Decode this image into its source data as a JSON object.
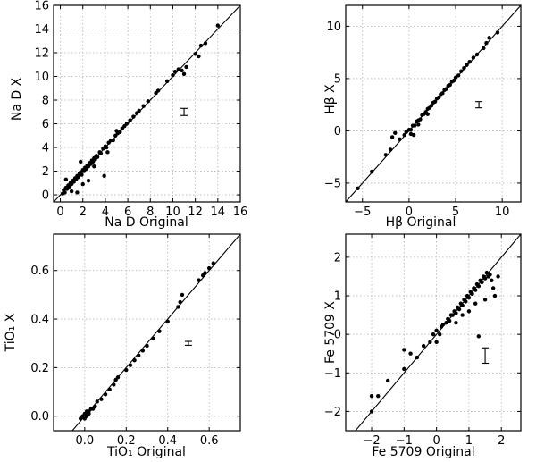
{
  "chart_data": [
    {
      "type": "scatter",
      "xlabel": "Na D Original",
      "ylabel": "Na D X",
      "xlim": [
        -0.6,
        16
      ],
      "ylim": [
        -0.6,
        16
      ],
      "xticks": [
        "0",
        "2",
        "4",
        "6",
        "8",
        "10",
        "12",
        "14",
        "16"
      ],
      "yticks": [
        "0",
        "2",
        "4",
        "6",
        "8",
        "10",
        "12",
        "14",
        "16"
      ],
      "xtick_values": [
        0,
        2,
        4,
        6,
        8,
        10,
        12,
        14,
        16
      ],
      "ytick_values": [
        0,
        2,
        4,
        6,
        8,
        10,
        12,
        14,
        16
      ],
      "grid": true,
      "identity_line": true,
      "error_bar": {
        "x": 11.0,
        "y": 7.0,
        "half_height": 0.3
      },
      "points": [
        [
          0.2,
          0.1
        ],
        [
          0.3,
          0.4
        ],
        [
          0.4,
          0.2
        ],
        [
          0.5,
          0.6
        ],
        [
          0.6,
          0.5
        ],
        [
          0.7,
          0.8
        ],
        [
          0.8,
          0.7
        ],
        [
          0.9,
          1.0
        ],
        [
          1.0,
          0.9
        ],
        [
          1.1,
          1.2
        ],
        [
          1.2,
          1.1
        ],
        [
          1.3,
          1.4
        ],
        [
          1.4,
          1.3
        ],
        [
          1.5,
          1.6
        ],
        [
          1.6,
          1.5
        ],
        [
          1.7,
          1.8
        ],
        [
          1.8,
          1.9
        ],
        [
          1.9,
          1.7
        ],
        [
          2.0,
          2.1
        ],
        [
          2.1,
          2.0
        ],
        [
          2.2,
          2.3
        ],
        [
          2.3,
          2.2
        ],
        [
          2.4,
          2.5
        ],
        [
          2.5,
          2.4
        ],
        [
          2.6,
          2.7
        ],
        [
          2.7,
          2.6
        ],
        [
          2.8,
          2.9
        ],
        [
          2.9,
          2.8
        ],
        [
          3.0,
          3.1
        ],
        [
          3.1,
          3.0
        ],
        [
          3.2,
          3.3
        ],
        [
          3.3,
          3.2
        ],
        [
          3.5,
          3.6
        ],
        [
          3.6,
          3.5
        ],
        [
          3.8,
          3.9
        ],
        [
          4.0,
          4.1
        ],
        [
          4.1,
          4.0
        ],
        [
          4.3,
          4.4
        ],
        [
          4.5,
          4.6
        ],
        [
          4.7,
          4.6
        ],
        [
          4.9,
          5.0
        ],
        [
          5.1,
          5.2
        ],
        [
          5.3,
          5.3
        ],
        [
          5.5,
          5.6
        ],
        [
          5.7,
          5.8
        ],
        [
          5.9,
          6.0
        ],
        [
          6.2,
          6.3
        ],
        [
          6.5,
          6.6
        ],
        [
          6.8,
          6.9
        ],
        [
          7.0,
          7.1
        ],
        [
          7.4,
          7.5
        ],
        [
          7.8,
          7.9
        ],
        [
          8.5,
          8.6
        ],
        [
          8.7,
          8.8
        ],
        [
          9.5,
          9.6
        ],
        [
          10.0,
          10.1
        ],
        [
          10.2,
          10.4
        ],
        [
          10.5,
          10.6
        ],
        [
          10.8,
          10.5
        ],
        [
          11.0,
          10.2
        ],
        [
          11.2,
          10.8
        ],
        [
          12.0,
          11.9
        ],
        [
          12.3,
          11.7
        ],
        [
          12.5,
          12.6
        ],
        [
          12.9,
          12.8
        ],
        [
          14.0,
          14.3
        ],
        [
          1.5,
          0.2
        ],
        [
          2.0,
          0.9
        ],
        [
          2.5,
          1.2
        ],
        [
          1.8,
          2.8
        ],
        [
          3.0,
          2.4
        ],
        [
          0.5,
          1.3
        ],
        [
          1.0,
          0.3
        ],
        [
          4.2,
          3.6
        ],
        [
          5.0,
          5.4
        ],
        [
          3.9,
          1.6
        ]
      ]
    },
    {
      "type": "scatter",
      "xlabel": "Hβ Original",
      "ylabel": "Hβ X",
      "xlim": [
        -6.8,
        12
      ],
      "ylim": [
        -6.8,
        12
      ],
      "xticks": [
        "−5",
        "0",
        "5",
        "10"
      ],
      "yticks": [
        "−5",
        "0",
        "5",
        "10"
      ],
      "xtick_values": [
        -5,
        0,
        5,
        10
      ],
      "ytick_values": [
        -5,
        0,
        5,
        10
      ],
      "grid": true,
      "identity_line": true,
      "error_bar": {
        "x": 7.5,
        "y": 2.5,
        "half_height": 0.3
      },
      "points": [
        [
          -5.5,
          -5.5
        ],
        [
          -4.0,
          -3.9
        ],
        [
          -2.5,
          -2.3
        ],
        [
          -2.0,
          -1.8
        ],
        [
          -1.8,
          -0.6
        ],
        [
          -1.5,
          -0.2
        ],
        [
          -1.0,
          -0.8
        ],
        [
          -0.5,
          -0.4
        ],
        [
          -0.3,
          -0.1
        ],
        [
          0.0,
          0.1
        ],
        [
          0.2,
          0.1
        ],
        [
          0.4,
          0.5
        ],
        [
          0.6,
          0.5
        ],
        [
          0.8,
          0.9
        ],
        [
          1.0,
          1.0
        ],
        [
          1.2,
          1.1
        ],
        [
          1.4,
          1.5
        ],
        [
          1.6,
          1.6
        ],
        [
          1.8,
          1.8
        ],
        [
          2.0,
          2.1
        ],
        [
          2.2,
          2.2
        ],
        [
          2.4,
          2.4
        ],
        [
          2.6,
          2.7
        ],
        [
          2.8,
          2.8
        ],
        [
          3.0,
          3.1
        ],
        [
          3.2,
          3.2
        ],
        [
          3.4,
          3.5
        ],
        [
          3.6,
          3.6
        ],
        [
          3.8,
          3.9
        ],
        [
          4.0,
          4.0
        ],
        [
          4.2,
          4.3
        ],
        [
          4.4,
          4.4
        ],
        [
          4.6,
          4.7
        ],
        [
          4.8,
          4.8
        ],
        [
          5.0,
          5.1
        ],
        [
          5.3,
          5.3
        ],
        [
          5.6,
          5.7
        ],
        [
          5.9,
          6.0
        ],
        [
          6.2,
          6.3
        ],
        [
          6.5,
          6.6
        ],
        [
          6.9,
          7.0
        ],
        [
          7.3,
          7.3
        ],
        [
          8.0,
          7.9
        ],
        [
          8.3,
          8.4
        ],
        [
          8.6,
          8.9
        ],
        [
          9.5,
          9.4
        ],
        [
          0.2,
          -0.3
        ],
        [
          1.0,
          0.6
        ],
        [
          2.0,
          1.6
        ],
        [
          0.5,
          -0.4
        ]
      ]
    },
    {
      "type": "scatter",
      "xlabel": "TiO₁ Original",
      "ylabel": "TiO₁ X",
      "xlim": [
        -0.15,
        0.75
      ],
      "ylim": [
        -0.06,
        0.75
      ],
      "xticks": [
        "0.0",
        "0.2",
        "0.4",
        "0.6"
      ],
      "yticks": [
        "0.0",
        "0.2",
        "0.4",
        "0.6"
      ],
      "xtick_values": [
        0.0,
        0.2,
        0.4,
        0.6
      ],
      "ytick_values": [
        0.0,
        0.2,
        0.4,
        0.6
      ],
      "grid": true,
      "identity_line": true,
      "error_bar": {
        "x": 0.5,
        "y": 0.3,
        "half_height": 0.008
      },
      "points": [
        [
          -0.02,
          -0.01
        ],
        [
          -0.01,
          0.0
        ],
        [
          0.0,
          0.0
        ],
        [
          0.0,
          0.01
        ],
        [
          0.01,
          0.0
        ],
        [
          0.01,
          0.02
        ],
        [
          0.02,
          0.01
        ],
        [
          0.02,
          0.02
        ],
        [
          0.03,
          0.03
        ],
        [
          0.04,
          0.03
        ],
        [
          0.05,
          0.04
        ],
        [
          0.06,
          0.06
        ],
        [
          0.08,
          0.07
        ],
        [
          0.1,
          0.09
        ],
        [
          0.12,
          0.11
        ],
        [
          0.14,
          0.13
        ],
        [
          0.16,
          0.16
        ],
        [
          0.2,
          0.19
        ],
        [
          0.22,
          0.21
        ],
        [
          0.24,
          0.23
        ],
        [
          0.26,
          0.25
        ],
        [
          0.28,
          0.27
        ],
        [
          0.3,
          0.29
        ],
        [
          0.33,
          0.32
        ],
        [
          0.36,
          0.35
        ],
        [
          0.4,
          0.39
        ],
        [
          0.45,
          0.45
        ],
        [
          0.46,
          0.47
        ],
        [
          0.47,
          0.5
        ],
        [
          0.55,
          0.56
        ],
        [
          0.57,
          0.58
        ],
        [
          0.58,
          0.59
        ],
        [
          0.6,
          0.61
        ],
        [
          0.62,
          0.63
        ],
        [
          0.0,
          -0.01
        ],
        [
          0.01,
          0.01
        ],
        [
          0.15,
          0.15
        ]
      ]
    },
    {
      "type": "scatter",
      "xlabel": "Fe 5709 Original",
      "ylabel": "Fe 5709 X",
      "xlim": [
        -2.8,
        2.6
      ],
      "ylim": [
        -2.5,
        2.6
      ],
      "xticks": [
        "−2",
        "−1",
        "0",
        "1",
        "2"
      ],
      "yticks": [
        "−2",
        "−1",
        "0",
        "1",
        "2"
      ],
      "xtick_values": [
        -2,
        -1,
        0,
        1,
        2
      ],
      "ytick_values": [
        -2,
        -1,
        0,
        1,
        2
      ],
      "grid": true,
      "identity_line": true,
      "error_bar": {
        "x": 1.5,
        "y": -0.55,
        "half_height": 0.2
      },
      "points": [
        [
          -2.0,
          -1.6
        ],
        [
          -2.0,
          -2.0
        ],
        [
          -1.8,
          -1.6
        ],
        [
          -1.5,
          -1.2
        ],
        [
          -1.0,
          -0.9
        ],
        [
          -1.0,
          -0.4
        ],
        [
          -0.8,
          -0.5
        ],
        [
          -0.6,
          -0.6
        ],
        [
          -0.4,
          -0.3
        ],
        [
          -0.2,
          -0.2
        ],
        [
          -0.1,
          0.0
        ],
        [
          0.0,
          0.1
        ],
        [
          0.1,
          0.0
        ],
        [
          0.15,
          0.2
        ],
        [
          0.2,
          0.25
        ],
        [
          0.3,
          0.3
        ],
        [
          0.35,
          0.4
        ],
        [
          0.4,
          0.35
        ],
        [
          0.45,
          0.5
        ],
        [
          0.5,
          0.5
        ],
        [
          0.55,
          0.6
        ],
        [
          0.6,
          0.55
        ],
        [
          0.65,
          0.7
        ],
        [
          0.7,
          0.65
        ],
        [
          0.75,
          0.8
        ],
        [
          0.8,
          0.75
        ],
        [
          0.85,
          0.9
        ],
        [
          0.9,
          0.85
        ],
        [
          0.95,
          1.0
        ],
        [
          1.0,
          0.95
        ],
        [
          1.05,
          1.1
        ],
        [
          1.1,
          1.05
        ],
        [
          1.15,
          1.2
        ],
        [
          1.2,
          1.15
        ],
        [
          1.25,
          1.3
        ],
        [
          1.3,
          1.25
        ],
        [
          1.35,
          1.4
        ],
        [
          1.4,
          1.35
        ],
        [
          1.45,
          1.5
        ],
        [
          1.5,
          1.45
        ],
        [
          1.55,
          1.6
        ],
        [
          1.6,
          1.5
        ],
        [
          1.65,
          1.55
        ],
        [
          1.7,
          1.4
        ],
        [
          1.75,
          1.2
        ],
        [
          1.8,
          1.0
        ],
        [
          1.2,
          0.8
        ],
        [
          1.0,
          0.6
        ],
        [
          0.8,
          0.5
        ],
        [
          1.9,
          1.5
        ],
        [
          1.5,
          0.9
        ],
        [
          1.3,
          -0.05
        ],
        [
          0.6,
          0.3
        ],
        [
          0.0,
          -0.2
        ]
      ]
    }
  ]
}
